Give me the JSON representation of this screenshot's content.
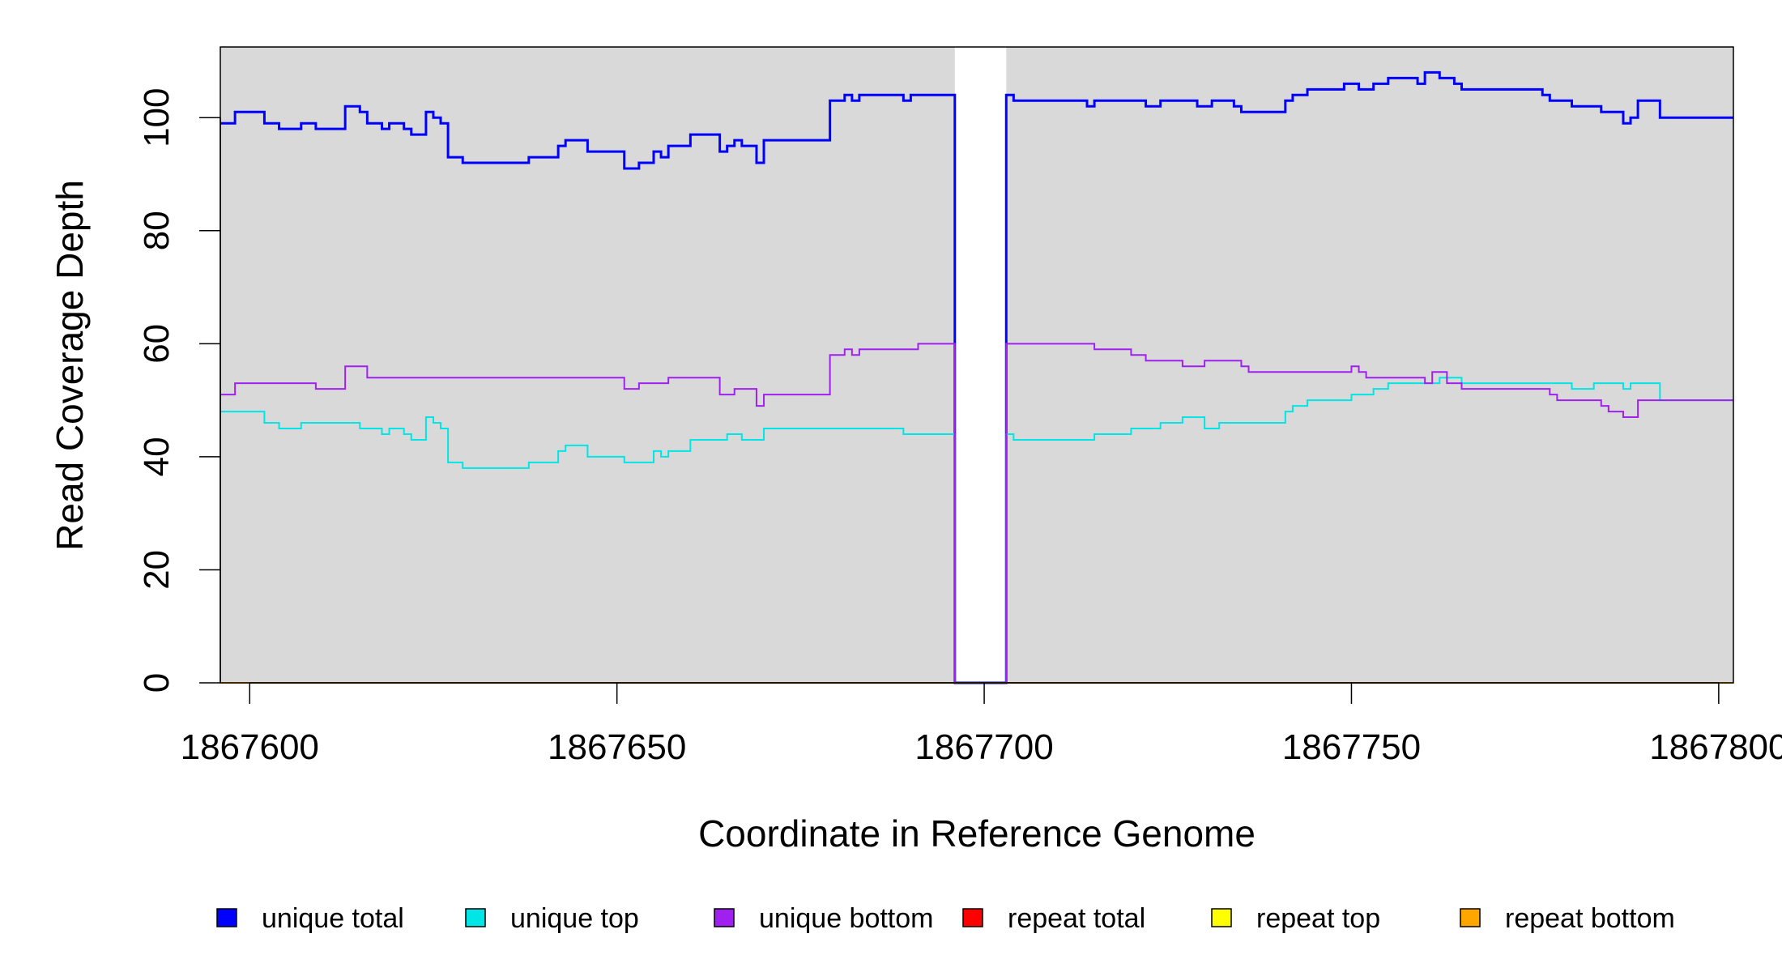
{
  "chart_data": {
    "type": "line",
    "title": "",
    "xlabel": "Coordinate in Reference Genome",
    "ylabel": "Read Coverage Depth",
    "xlim": [
      1867596,
      1867802
    ],
    "ylim": [
      0,
      112.5
    ],
    "x_ticks": [
      1867600,
      1867650,
      1867700,
      1867750,
      1867800
    ],
    "x_tick_labels": [
      "1867600",
      "1867650",
      "1867700",
      "1867750",
      "1867800"
    ],
    "y_ticks": [
      0,
      20,
      40,
      60,
      80,
      100
    ],
    "y_tick_labels": [
      "0",
      "20",
      "40",
      "60",
      "80",
      "100"
    ],
    "background": "#d9d9d9",
    "gap": [
      1867696,
      1867703
    ],
    "legend_position": "bottom",
    "series": [
      {
        "name": "unique total",
        "color": "#0000ff",
        "step": true,
        "points": [
          [
            1867596,
            99
          ],
          [
            1867598,
            101
          ],
          [
            1867602,
            99
          ],
          [
            1867604,
            98
          ],
          [
            1867607,
            99
          ],
          [
            1867609,
            98
          ],
          [
            1867613,
            102
          ],
          [
            1867615,
            101
          ],
          [
            1867616,
            99
          ],
          [
            1867618,
            98
          ],
          [
            1867619,
            99
          ],
          [
            1867621,
            98
          ],
          [
            1867622,
            97
          ],
          [
            1867624,
            101
          ],
          [
            1867625,
            100
          ],
          [
            1867626,
            99
          ],
          [
            1867627,
            93
          ],
          [
            1867629,
            92
          ],
          [
            1867638,
            93
          ],
          [
            1867642,
            95
          ],
          [
            1867643,
            96
          ],
          [
            1867646,
            94
          ],
          [
            1867651,
            91
          ],
          [
            1867653,
            92
          ],
          [
            1867655,
            94
          ],
          [
            1867656,
            93
          ],
          [
            1867657,
            95
          ],
          [
            1867660,
            97
          ],
          [
            1867664,
            94
          ],
          [
            1867665,
            95
          ],
          [
            1867666,
            96
          ],
          [
            1867667,
            95
          ],
          [
            1867669,
            92
          ],
          [
            1867670,
            96
          ],
          [
            1867679,
            103
          ],
          [
            1867681,
            104
          ],
          [
            1867682,
            103
          ],
          [
            1867683,
            104
          ],
          [
            1867689,
            103
          ],
          [
            1867690,
            104
          ],
          [
            1867695,
            104
          ],
          [
            1867696,
            0
          ],
          [
            1867703,
            104
          ],
          [
            1867704,
            103
          ],
          [
            1867714,
            102
          ],
          [
            1867715,
            103
          ],
          [
            1867722,
            102
          ],
          [
            1867724,
            103
          ],
          [
            1867729,
            102
          ],
          [
            1867731,
            103
          ],
          [
            1867734,
            102
          ],
          [
            1867735,
            101
          ],
          [
            1867741,
            103
          ],
          [
            1867742,
            104
          ],
          [
            1867744,
            105
          ],
          [
            1867749,
            106
          ],
          [
            1867751,
            105
          ],
          [
            1867753,
            106
          ],
          [
            1867755,
            107
          ],
          [
            1867759,
            106
          ],
          [
            1867760,
            108
          ],
          [
            1867762,
            107
          ],
          [
            1867764,
            106
          ],
          [
            1867765,
            105
          ],
          [
            1867776,
            104
          ],
          [
            1867777,
            103
          ],
          [
            1867780,
            102
          ],
          [
            1867784,
            101
          ],
          [
            1867787,
            99
          ],
          [
            1867788,
            100
          ],
          [
            1867789,
            103
          ],
          [
            1867792,
            100
          ],
          [
            1867802,
            100
          ]
        ]
      },
      {
        "name": "unique top",
        "color": "#00e5e5",
        "step": true,
        "points": [
          [
            1867596,
            48
          ],
          [
            1867602,
            46
          ],
          [
            1867604,
            45
          ],
          [
            1867607,
            46
          ],
          [
            1867615,
            45
          ],
          [
            1867618,
            44
          ],
          [
            1867619,
            45
          ],
          [
            1867621,
            44
          ],
          [
            1867622,
            43
          ],
          [
            1867624,
            47
          ],
          [
            1867625,
            46
          ],
          [
            1867626,
            45
          ],
          [
            1867627,
            39
          ],
          [
            1867629,
            38
          ],
          [
            1867638,
            39
          ],
          [
            1867642,
            41
          ],
          [
            1867643,
            42
          ],
          [
            1867646,
            40
          ],
          [
            1867651,
            39
          ],
          [
            1867655,
            41
          ],
          [
            1867656,
            40
          ],
          [
            1867657,
            41
          ],
          [
            1867660,
            43
          ],
          [
            1867665,
            44
          ],
          [
            1867667,
            43
          ],
          [
            1867670,
            45
          ],
          [
            1867689,
            44
          ],
          [
            1867695,
            44
          ],
          [
            1867696,
            0
          ],
          [
            1867703,
            44
          ],
          [
            1867704,
            43
          ],
          [
            1867715,
            44
          ],
          [
            1867720,
            45
          ],
          [
            1867724,
            46
          ],
          [
            1867727,
            47
          ],
          [
            1867730,
            45
          ],
          [
            1867732,
            46
          ],
          [
            1867741,
            48
          ],
          [
            1867742,
            49
          ],
          [
            1867744,
            50
          ],
          [
            1867750,
            51
          ],
          [
            1867753,
            52
          ],
          [
            1867755,
            53
          ],
          [
            1867759,
            53
          ],
          [
            1867760,
            53
          ],
          [
            1867762,
            54
          ],
          [
            1867765,
            53
          ],
          [
            1867780,
            52
          ],
          [
            1867783,
            53
          ],
          [
            1867787,
            52
          ],
          [
            1867788,
            53
          ],
          [
            1867792,
            50
          ],
          [
            1867802,
            50
          ]
        ]
      },
      {
        "name": "unique bottom",
        "color": "#a020f0",
        "step": true,
        "points": [
          [
            1867596,
            51
          ],
          [
            1867598,
            53
          ],
          [
            1867609,
            52
          ],
          [
            1867613,
            56
          ],
          [
            1867616,
            54
          ],
          [
            1867651,
            52
          ],
          [
            1867653,
            53
          ],
          [
            1867657,
            54
          ],
          [
            1867664,
            51
          ],
          [
            1867666,
            52
          ],
          [
            1867669,
            49
          ],
          [
            1867670,
            51
          ],
          [
            1867679,
            58
          ],
          [
            1867681,
            59
          ],
          [
            1867682,
            58
          ],
          [
            1867683,
            59
          ],
          [
            1867691,
            60
          ],
          [
            1867695,
            60
          ],
          [
            1867696,
            0
          ],
          [
            1867703,
            60
          ],
          [
            1867715,
            59
          ],
          [
            1867720,
            58
          ],
          [
            1867722,
            57
          ],
          [
            1867727,
            56
          ],
          [
            1867730,
            57
          ],
          [
            1867735,
            56
          ],
          [
            1867736,
            55
          ],
          [
            1867750,
            56
          ],
          [
            1867751,
            55
          ],
          [
            1867752,
            54
          ],
          [
            1867760,
            53
          ],
          [
            1867761,
            55
          ],
          [
            1867763,
            53
          ],
          [
            1867765,
            52
          ],
          [
            1867777,
            51
          ],
          [
            1867778,
            50
          ],
          [
            1867784,
            49
          ],
          [
            1867785,
            48
          ],
          [
            1867787,
            47
          ],
          [
            1867789,
            50
          ],
          [
            1867802,
            50
          ]
        ]
      },
      {
        "name": "repeat total",
        "color": "#ff0000",
        "step": true,
        "points": [
          [
            1867596,
            0
          ],
          [
            1867802,
            0
          ]
        ]
      },
      {
        "name": "repeat top",
        "color": "#ffff00",
        "step": true,
        "points": [
          [
            1867596,
            0
          ],
          [
            1867802,
            0
          ]
        ]
      },
      {
        "name": "repeat bottom",
        "color": "#ffa500",
        "step": true,
        "points": [
          [
            1867596,
            0
          ],
          [
            1867802,
            0
          ]
        ]
      }
    ]
  }
}
